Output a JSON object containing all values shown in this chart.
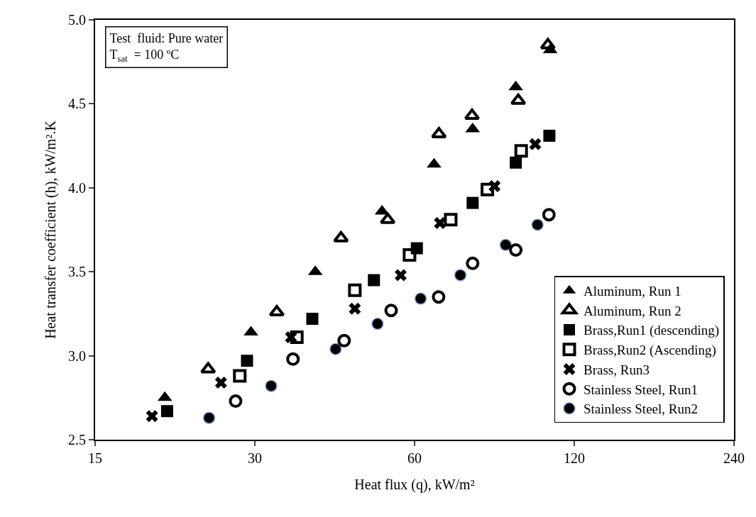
{
  "chart_data": {
    "type": "scatter",
    "xlabel": "Heat flux (q), kW/m²",
    "ylabel": "Heat transfer coefficient (h), kW/m².K",
    "log": "x",
    "grid": false,
    "legend": "bottom right",
    "xlim": [
      15,
      240
    ],
    "xticks": [
      15,
      30,
      60,
      120,
      240
    ],
    "ylim": [
      2.5,
      5.0
    ],
    "yticks": [
      {
        "value": 2.5,
        "label": "2.5"
      },
      {
        "value": 3.0,
        "label": "3.0"
      },
      {
        "value": 3.5,
        "label": "3.5"
      },
      {
        "value": 4.0,
        "label": "4.0"
      },
      {
        "value": 4.5,
        "label": "4.5"
      },
      {
        "value": 5.0,
        "label": "5.0"
      }
    ],
    "annotations": [
      "Test  fluid: Pure water\nT$_{sat}$  = 100 ºC"
    ],
    "series": [
      {
        "name": "Aluminum, Run 1",
        "color": "#000000",
        "marker": "triangle",
        "x": [
          20.3,
          29.5,
          39.0,
          52.1,
          65.3,
          77.2,
          93.1,
          108.1
        ],
        "values": [
          2.75,
          3.14,
          3.5,
          3.86,
          4.14,
          4.35,
          4.6,
          4.82
        ]
      },
      {
        "name": "Aluminum, Run 2",
        "color": "#000000",
        "marker": "triangle-open",
        "x": [
          24.5,
          33.0,
          43.6,
          53.4,
          66.7,
          77.0,
          94.1,
          107.0
        ],
        "values": [
          2.92,
          3.26,
          3.7,
          3.81,
          4.32,
          4.43,
          4.52,
          4.85
        ]
      },
      {
        "name": "Brass,Run1 (descending)",
        "color": "#000000",
        "marker": "square",
        "x": [
          20.5,
          29.0,
          38.5,
          50.3,
          60.6,
          77.2,
          93.1,
          107.7
        ],
        "values": [
          2.67,
          2.97,
          3.22,
          3.45,
          3.64,
          3.91,
          4.15,
          4.31
        ]
      },
      {
        "name": "Brass,Run2 (Ascending)",
        "color": "#000000",
        "marker": "square-open",
        "x": [
          28.1,
          36.0,
          46.3,
          58.7,
          70.2,
          82.3,
          95.3
        ],
        "values": [
          2.88,
          3.11,
          3.39,
          3.6,
          3.81,
          3.99,
          4.22
        ]
      },
      {
        "name": "Brass, Run3",
        "color": "#000000",
        "marker": "cross",
        "x": [
          19.2,
          25.9,
          35.1,
          46.3,
          56.5,
          67.0,
          84.9,
          101.3
        ],
        "values": [
          2.64,
          2.84,
          3.11,
          3.28,
          3.48,
          3.79,
          4.01,
          4.26
        ]
      },
      {
        "name": "Stainless Steel, Run1",
        "color": "#000000",
        "marker": "circle-open",
        "x": [
          27.6,
          35.4,
          44.2,
          54.2,
          66.6,
          77.2,
          93.1,
          107.5
        ],
        "values": [
          2.73,
          2.98,
          3.09,
          3.27,
          3.35,
          3.55,
          3.63,
          3.84
        ]
      },
      {
        "name": "Stainless Steel, Run2",
        "color": "#000000",
        "marker": "circle",
        "x": [
          24.6,
          32.2,
          42.6,
          51.1,
          61.6,
          73.2,
          89.1,
          102.3
        ],
        "values": [
          2.63,
          2.82,
          3.04,
          3.19,
          3.34,
          3.48,
          3.66,
          3.78
        ]
      }
    ]
  }
}
